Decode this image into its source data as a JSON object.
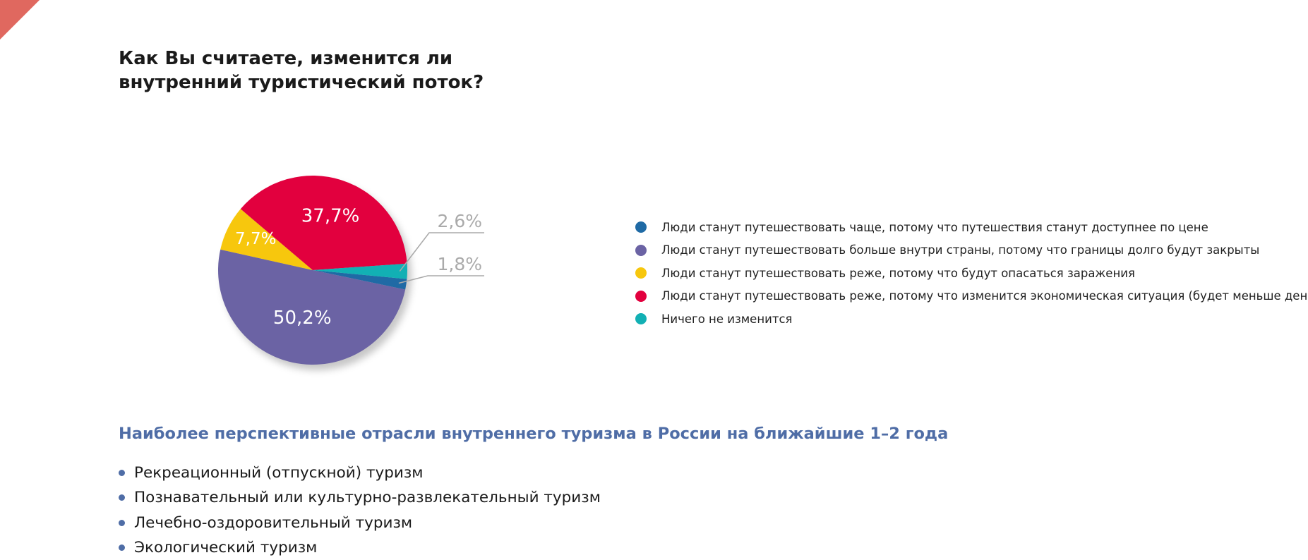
{
  "question": "Как Вы считаете, изменится ли внутренний туристический поток?",
  "chart_data": {
    "type": "pie",
    "title": "Как Вы считаете, изменится ли внутренний туристический поток?",
    "slices": [
      {
        "label": "Люди станут путешествовать чаще, потому что путешествия станут доступнее по цене",
        "value": 1.8,
        "display": "1,8%",
        "color": "#1f6aa5"
      },
      {
        "label": "Люди станут путешествовать больше внутри страны, потому что границы долго будут закрыты",
        "value": 50.2,
        "display": "50,2%",
        "color": "#6b63a4"
      },
      {
        "label": "Люди станут путешествовать реже, потому что будут опасаться заражения",
        "value": 7.7,
        "display": "7,7%",
        "color": "#f7c70d"
      },
      {
        "label": "Люди станут путешествовать реже, потому что изменится экономическая ситуация (будет меньше денег)",
        "value": 37.7,
        "display": "37,7%",
        "color": "#e2003e"
      },
      {
        "label": "Ничего не изменится",
        "value": 2.6,
        "display": "2,6%",
        "color": "#12b0b4"
      }
    ],
    "legend_position": "right"
  },
  "sectors": {
    "heading": "Наиболее перспективные отрасли внутреннего туризма в России на ближайшие 1–2 года",
    "items": [
      "Рекреационный (отпускной) туризм",
      "Познавательный или культурно-развлекательный туризм",
      "Лечебно-оздоровительный туризм",
      "Экологический туризм"
    ]
  },
  "colors": {
    "accent_corner": "#e0685f",
    "heading_blue": "#4f6da6",
    "callout_gray": "#aaaaaa"
  }
}
